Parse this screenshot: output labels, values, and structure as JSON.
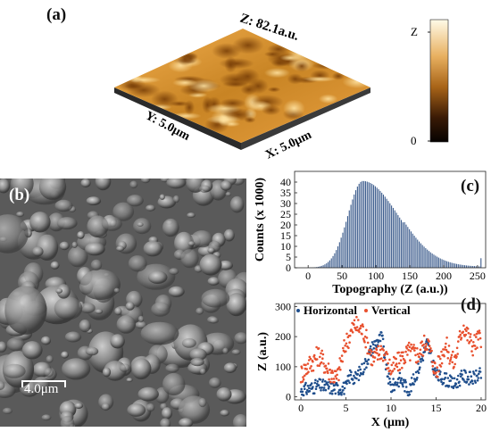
{
  "panels": {
    "a": {
      "label": "(a)",
      "z_range_label": "Z: 82.1a.u.",
      "x_axis_label": "X: 5.0μm",
      "y_axis_label": "Y: 5.0μm",
      "colorbar": {
        "top_label": "Z",
        "bottom_label": "0",
        "colors": [
          "#fffbe8",
          "#e8b060",
          "#a86418",
          "#3a1a05",
          "#050200"
        ]
      }
    },
    "b": {
      "label": "(b)",
      "scale_bar_label": "4.0μm"
    },
    "c": {
      "label": "(c)"
    },
    "d": {
      "label": "(d)"
    }
  },
  "chart_data": [
    {
      "type": "bar",
      "panel": "c",
      "xlabel": "Topography (Z (a.u.))",
      "ylabel": "Counts (x 1000)",
      "xlim": [
        -20,
        262
      ],
      "ylim": [
        0,
        45
      ],
      "xticks": [
        0,
        50,
        100,
        150,
        200,
        250
      ],
      "yticks": [
        0,
        5,
        10,
        15,
        20,
        25,
        30,
        35,
        40
      ],
      "bar_color": "#3b5b8c",
      "histogram": {
        "start": 0,
        "end": 256,
        "step": 2.4,
        "peak_x": 80,
        "peak_y": 40.5,
        "sigma_left": 22,
        "sigma_right": 52,
        "tail_spike_x": 255,
        "tail_spike_y": 4
      }
    },
    {
      "type": "scatter",
      "panel": "d",
      "xlabel": "X (μm)",
      "ylabel": "Z (a.u.)",
      "xlim": [
        -0.7,
        20.5
      ],
      "ylim": [
        -10,
        310
      ],
      "xticks": [
        0,
        5,
        10,
        15,
        20
      ],
      "yticks": [
        0,
        100,
        200,
        300
      ],
      "series": [
        {
          "name": "Horizontal",
          "color": "#1f4e8c",
          "x": [
            0,
            1,
            2,
            3,
            4,
            5,
            5.5,
            6,
            7,
            8,
            9,
            9.5,
            10,
            11,
            12,
            13,
            14,
            15,
            16,
            17,
            18,
            19,
            20
          ],
          "y": [
            20,
            28,
            38,
            32,
            28,
            30,
            75,
            60,
            100,
            170,
            200,
            90,
            30,
            60,
            20,
            90,
            180,
            70,
            60,
            40,
            70,
            60,
            75
          ]
        },
        {
          "name": "Vertical",
          "color": "#e8502e",
          "x": [
            0,
            1,
            2,
            3,
            4,
            5,
            6,
            7,
            8,
            9,
            10,
            11,
            12,
            13,
            14,
            15,
            16,
            17,
            18,
            19,
            20
          ],
          "y": [
            75,
            110,
            140,
            90,
            60,
            180,
            240,
            215,
            120,
            160,
            90,
            120,
            150,
            140,
            190,
            80,
            175,
            110,
            240,
            170,
            200
          ]
        }
      ]
    }
  ]
}
